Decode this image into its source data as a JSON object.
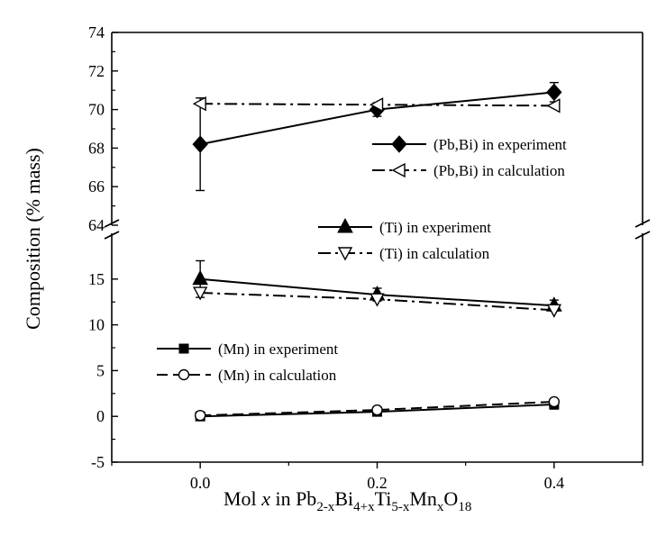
{
  "chart_data": {
    "type": "line",
    "title": "",
    "xlabel_parts": {
      "prefix": "Mol ",
      "var": "x",
      "mid": " in Pb",
      "sub1": "2-x",
      "bi": "Bi",
      "sub2": "4+x",
      "ti": "Ti",
      "sub3": "5-x",
      "mn": "Mn",
      "sub4": "x",
      "o": "O",
      "sub5": "18"
    },
    "ylabel": "Composition (% mass)",
    "x": [
      0.0,
      0.2,
      0.4
    ],
    "x_ticks": [
      "0.0",
      "0.2",
      "0.4"
    ],
    "xlim": [
      -0.1,
      0.5
    ],
    "y_axis_break": true,
    "upper_panel": {
      "ylim": [
        64,
        74
      ],
      "y_ticks": [
        "64",
        "66",
        "68",
        "70",
        "72",
        "74"
      ],
      "series": [
        {
          "name": "(Pb,Bi) in experiment",
          "values": [
            68.2,
            70.0,
            70.9
          ],
          "error": [
            2.4,
            0.35,
            0.5
          ],
          "marker": "filled-diamond",
          "line": "solid"
        },
        {
          "name": "(Pb,Bi) in calculation",
          "values": [
            70.3,
            70.25,
            70.2
          ],
          "marker": "open-left-triangle",
          "line": "dash-dot"
        }
      ]
    },
    "lower_panel": {
      "ylim": [
        -5,
        20
      ],
      "y_ticks": [
        "-5",
        "0",
        "5",
        "10",
        "15"
      ],
      "series": [
        {
          "name": "(Ti) in experiment",
          "values": [
            15.0,
            13.3,
            12.1
          ],
          "error": [
            2.0,
            0.7,
            0.6
          ],
          "marker": "filled-up-triangle",
          "line": "solid"
        },
        {
          "name": "(Ti) in calculation",
          "values": [
            13.5,
            12.8,
            11.6
          ],
          "marker": "open-down-triangle",
          "line": "dash-dot"
        },
        {
          "name": "(Mn) in experiment",
          "values": [
            0.0,
            0.5,
            1.3
          ],
          "error": [
            0.3,
            0.3,
            0.5
          ],
          "marker": "filled-square",
          "line": "solid"
        },
        {
          "name": "(Mn) in calculation",
          "values": [
            0.1,
            0.7,
            1.6
          ],
          "marker": "open-circle",
          "line": "dash"
        }
      ]
    },
    "legend_placement": "inside, grouped near each series set"
  }
}
